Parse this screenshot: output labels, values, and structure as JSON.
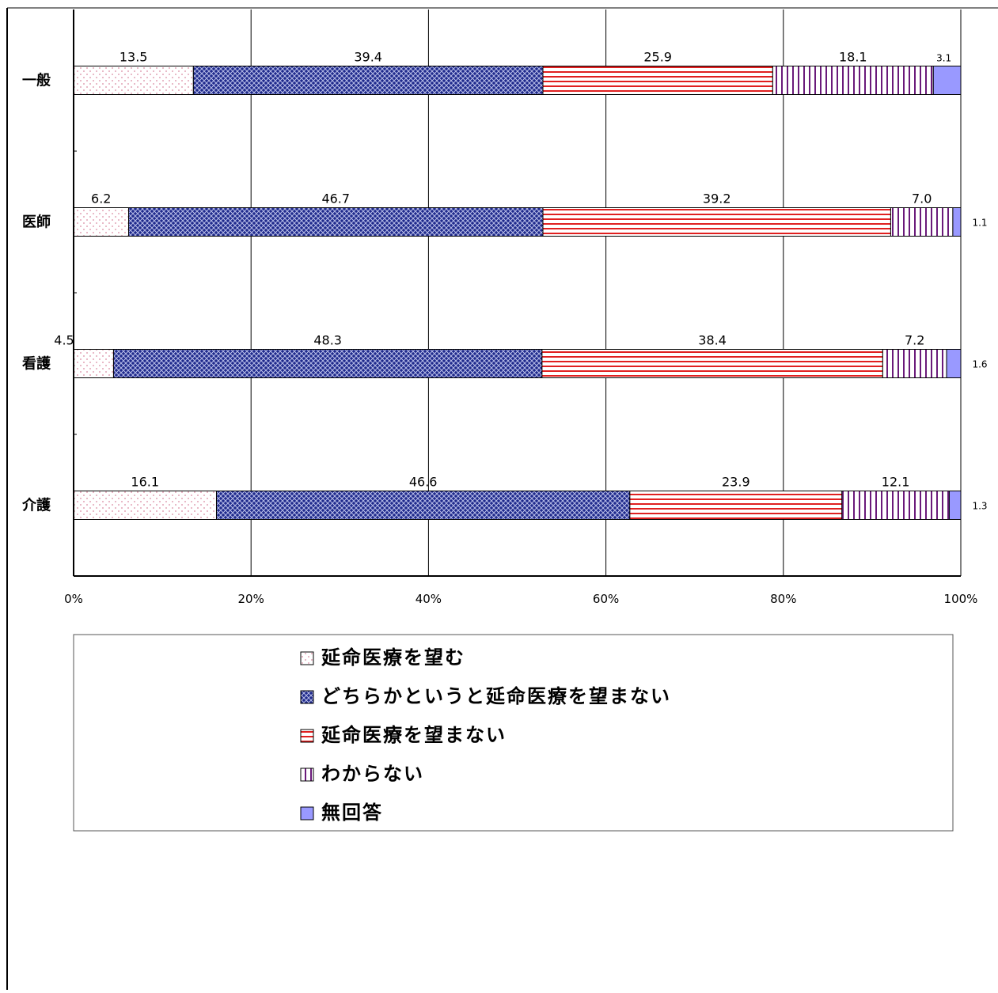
{
  "chart_data": {
    "type": "bar",
    "orientation": "horizontal",
    "stacked": true,
    "percent_stacked": true,
    "categories": [
      "一般",
      "医師",
      "看護",
      "介護"
    ],
    "series": [
      {
        "name": "延命医療を望む",
        "values": [
          13.5,
          6.2,
          4.5,
          16.1
        ],
        "labels": [
          "13.5",
          "6.2",
          "4.5",
          "16.1"
        ],
        "pattern": "dots",
        "color": "#ffffff",
        "accent": "#d98aa0"
      },
      {
        "name": "どちらかというと延命医療を望まない",
        "values": [
          39.4,
          46.7,
          48.3,
          46.6
        ],
        "labels": [
          "39.4",
          "46.7",
          "48.3",
          "46.6"
        ],
        "pattern": "crosshatch",
        "color": "#1f2a8c",
        "accent": "#ffffff"
      },
      {
        "name": "延命医療を望まない",
        "values": [
          25.9,
          39.2,
          38.4,
          23.9
        ],
        "labels": [
          "25.9",
          "39.2",
          "38.4",
          "23.9"
        ],
        "pattern": "horizontal-stripes",
        "color": "#ffffff",
        "accent": "#e02020"
      },
      {
        "name": "わからない",
        "values": [
          18.1,
          7.0,
          7.2,
          12.1
        ],
        "labels": [
          "18.1",
          "7.0",
          "7.2",
          "12.1"
        ],
        "pattern": "vertical-stripes",
        "color": "#ffffff",
        "accent": "#6a1a7a"
      },
      {
        "name": "無回答",
        "values": [
          3.1,
          1.1,
          1.6,
          1.3
        ],
        "labels": [
          "3.1",
          "1.1",
          "1.6",
          "1.3"
        ],
        "pattern": "solid",
        "color": "#9999ff",
        "accent": "#9999ff"
      }
    ],
    "x_ticks": [
      "0%",
      "20%",
      "40%",
      "60%",
      "80%",
      "100%"
    ],
    "xlim": [
      0,
      100
    ],
    "grid": true,
    "legend": "bottom"
  }
}
